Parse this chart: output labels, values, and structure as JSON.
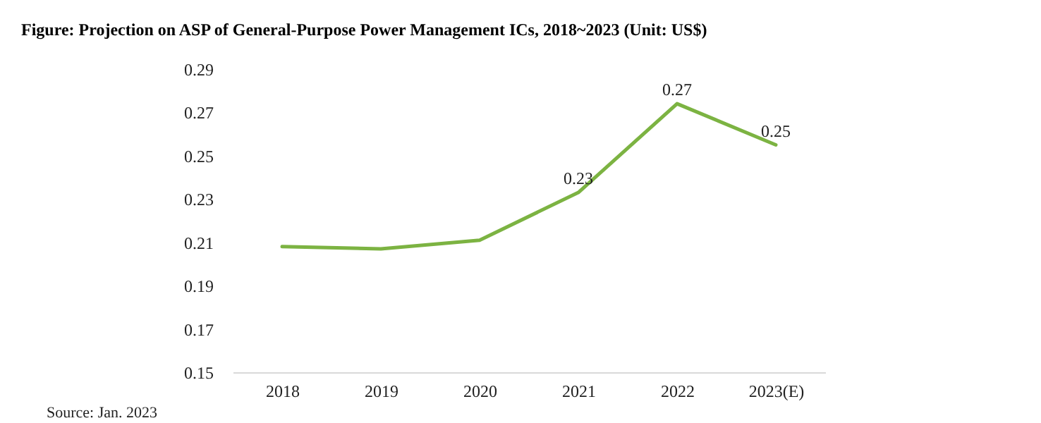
{
  "chart_data": {
    "type": "line",
    "title": "Figure: Projection on ASP of General-Purpose Power Management ICs, 2018~2023 (Unit: US$)",
    "categories": [
      "2018",
      "2019",
      "2020",
      "2021",
      "2022",
      "2023(E)"
    ],
    "series": [
      {
        "color": "#7cb342",
        "values": [
          0.208,
          0.207,
          0.211,
          0.233,
          0.274,
          0.255
        ],
        "value_labels": [
          null,
          null,
          null,
          "0.23",
          "0.27",
          "0.25"
        ]
      }
    ],
    "ylim": [
      0.15,
      0.29
    ],
    "yticks": [
      0.15,
      0.17,
      0.19,
      0.21,
      0.23,
      0.25,
      0.27,
      0.29
    ],
    "grid": false,
    "marker": "none",
    "annotations": [
      "Source: Jan. 2023"
    ]
  }
}
